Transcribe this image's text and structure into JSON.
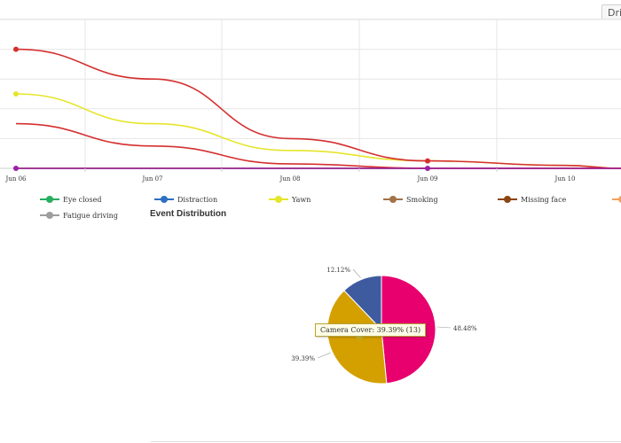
{
  "toolbar": {
    "button_label": "Driv"
  },
  "chart_data": [
    {
      "type": "line",
      "x_tick_labels": [
        "Jun 06",
        "Jun 07",
        "Jun 08",
        "Jun 09",
        "Jun 10"
      ],
      "grid": true,
      "legend_position": "bottom",
      "series": [
        {
          "name": "Eye closed",
          "color": "#27ae60",
          "values": [
            0,
            0,
            0,
            0,
            0,
            0
          ]
        },
        {
          "name": "Distraction",
          "color": "#2f6fc1",
          "values": [
            0,
            0,
            0,
            0,
            0,
            0
          ]
        },
        {
          "name": "Yawn",
          "color": "#e5e52a",
          "values": [
            5,
            3,
            1.2,
            0.5,
            0.2,
            0
          ]
        },
        {
          "name": "Smoking",
          "color": "#a2724a",
          "values": [
            0,
            0,
            0,
            0,
            0,
            0
          ]
        },
        {
          "name": "Missing face",
          "color": "#8b4513",
          "values": [
            0,
            0,
            0,
            0,
            0,
            0
          ]
        },
        {
          "name": "",
          "color": "#f0a060",
          "values": [
            0,
            0,
            0,
            0,
            0,
            0
          ]
        },
        {
          "name": "Fatigue driving",
          "color": "#9e9e9e",
          "values": [
            0,
            0,
            0,
            0,
            0,
            0
          ]
        },
        {
          "name": "",
          "color": "#d43030",
          "values": [
            8,
            6,
            2,
            0.5,
            0.2,
            0
          ],
          "markers": [
            true,
            false,
            false,
            true,
            false,
            false
          ]
        },
        {
          "name": "",
          "color": "#d43030",
          "values": [
            3,
            1.5,
            0.3,
            0,
            0,
            0
          ]
        },
        {
          "name": "",
          "color": "#9b1fa3",
          "values": [
            0,
            0,
            0,
            0,
            0,
            0
          ],
          "markers": [
            true,
            false,
            false,
            true,
            false,
            false
          ]
        }
      ]
    },
    {
      "type": "pie",
      "title": "Event Distribution",
      "slices": [
        {
          "name": "",
          "percent": 48.48,
          "label": "48.48%",
          "color": "#e8006e"
        },
        {
          "name": "Camera Cover",
          "percent": 39.39,
          "label": "39.39%",
          "count": 13,
          "color": "#d4a000"
        },
        {
          "name": "",
          "percent": 12.12,
          "label": "12.12%",
          "color": "#3e5ba0"
        }
      ],
      "tooltip": "Camera Cover: 39.39% (13)"
    }
  ]
}
